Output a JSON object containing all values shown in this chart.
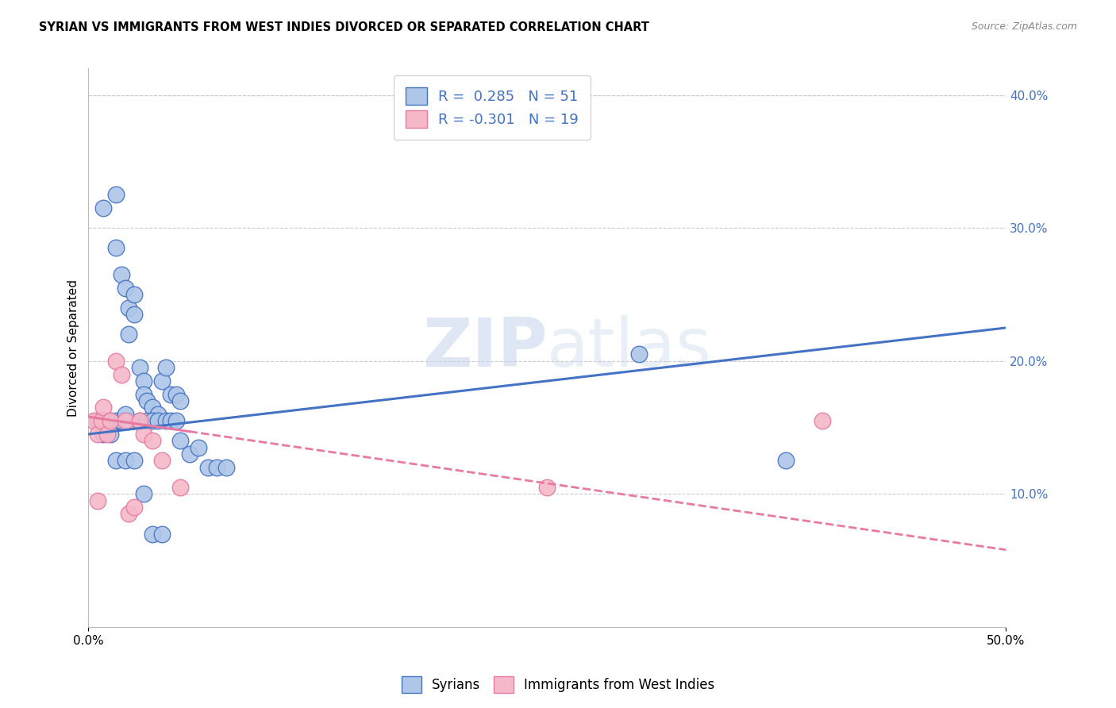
{
  "title": "SYRIAN VS IMMIGRANTS FROM WEST INDIES DIVORCED OR SEPARATED CORRELATION CHART",
  "source": "Source: ZipAtlas.com",
  "ylabel": "Divorced or Separated",
  "legend_label1": "Syrians",
  "legend_label2": "Immigrants from West Indies",
  "r1": 0.285,
  "n1": 51,
  "r2": -0.301,
  "n2": 19,
  "blue_color": "#aec6e8",
  "pink_color": "#f5b8c8",
  "blue_line_color": "#4472c4",
  "pink_line_color": "#e879a0",
  "watermark_zip": "ZIP",
  "watermark_atlas": "atlas",
  "xlim": [
    0.0,
    0.5
  ],
  "ylim": [
    0.0,
    0.42
  ],
  "yticks": [
    0.1,
    0.2,
    0.3,
    0.4
  ],
  "ytick_labels": [
    "10.0%",
    "20.0%",
    "30.0%",
    "40.0%"
  ],
  "blue_scatter_x": [
    0.008,
    0.015,
    0.015,
    0.018,
    0.02,
    0.022,
    0.022,
    0.025,
    0.025,
    0.028,
    0.03,
    0.03,
    0.032,
    0.035,
    0.038,
    0.04,
    0.042,
    0.045,
    0.048,
    0.005,
    0.007,
    0.009,
    0.012,
    0.015,
    0.018,
    0.022,
    0.028,
    0.032,
    0.035,
    0.038,
    0.042,
    0.045,
    0.048,
    0.05,
    0.055,
    0.06,
    0.065,
    0.07,
    0.075,
    0.008,
    0.012,
    0.015,
    0.02,
    0.025,
    0.03,
    0.035,
    0.04,
    0.3,
    0.38,
    0.02,
    0.05
  ],
  "blue_scatter_y": [
    0.315,
    0.325,
    0.285,
    0.265,
    0.255,
    0.24,
    0.22,
    0.25,
    0.235,
    0.195,
    0.185,
    0.175,
    0.17,
    0.165,
    0.16,
    0.185,
    0.195,
    0.175,
    0.175,
    0.155,
    0.155,
    0.155,
    0.155,
    0.155,
    0.155,
    0.155,
    0.155,
    0.155,
    0.155,
    0.155,
    0.155,
    0.155,
    0.155,
    0.14,
    0.13,
    0.135,
    0.12,
    0.12,
    0.12,
    0.145,
    0.145,
    0.125,
    0.125,
    0.125,
    0.1,
    0.07,
    0.07,
    0.205,
    0.125,
    0.16,
    0.17
  ],
  "pink_scatter_x": [
    0.003,
    0.005,
    0.005,
    0.007,
    0.008,
    0.01,
    0.012,
    0.015,
    0.018,
    0.02,
    0.022,
    0.025,
    0.028,
    0.03,
    0.035,
    0.04,
    0.05,
    0.25,
    0.4
  ],
  "pink_scatter_y": [
    0.155,
    0.145,
    0.095,
    0.155,
    0.165,
    0.145,
    0.155,
    0.2,
    0.19,
    0.155,
    0.085,
    0.09,
    0.155,
    0.145,
    0.14,
    0.125,
    0.105,
    0.105,
    0.155
  ],
  "blue_line_y_start": 0.145,
  "blue_line_y_end": 0.225,
  "pink_line_y_start": 0.158,
  "pink_line_y_end": 0.058
}
